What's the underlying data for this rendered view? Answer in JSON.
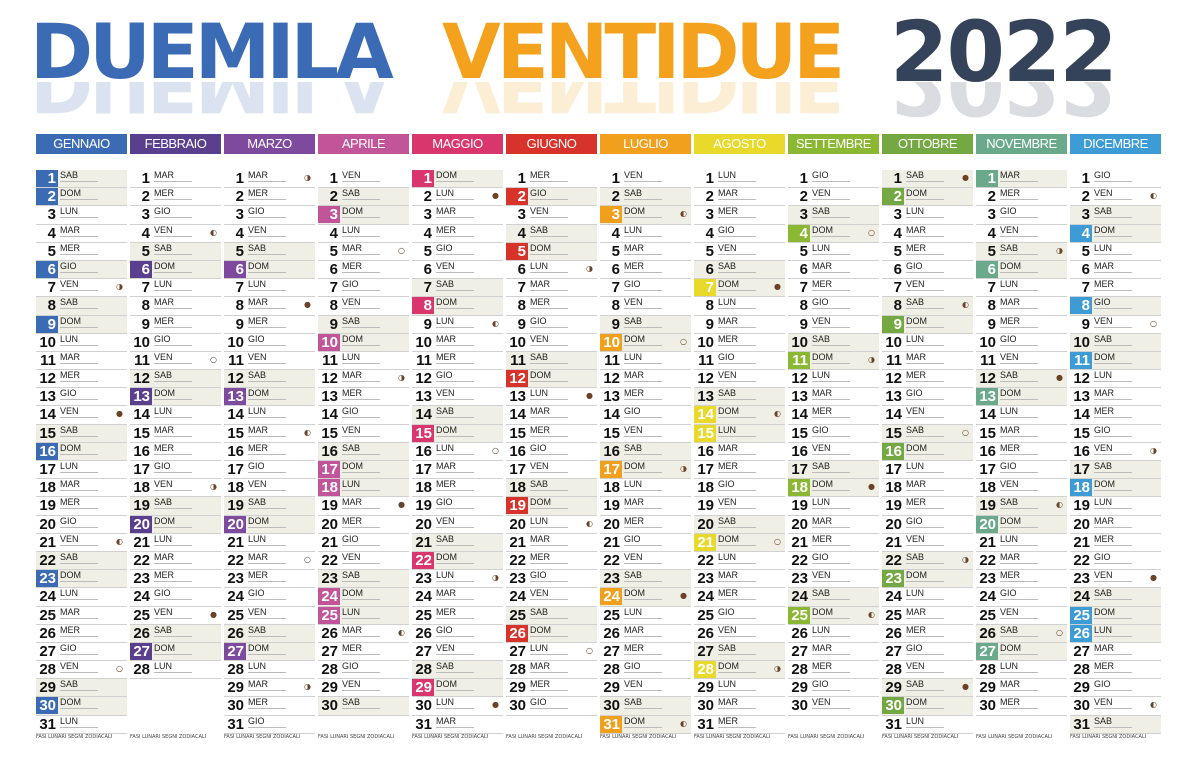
{
  "title": {
    "part1": "DUEMILA",
    "part2": "VENTIDUE",
    "year": "2022"
  },
  "legend": {
    "phases": "FASI LUNARI",
    "signs": "SEGNI ZODIACALI"
  },
  "weekdays": [
    "LUN",
    "MAR",
    "MER",
    "GIO",
    "VEN",
    "SAB",
    "DOM"
  ],
  "months": [
    {
      "name": "GENNAIO",
      "color": "#3b6bb5",
      "days": 31,
      "start": 5,
      "holidays": [
        1,
        2,
        6,
        9,
        16,
        23,
        30
      ]
    },
    {
      "name": "FEBBRAIO",
      "color": "#5a3f8f",
      "days": 28,
      "start": 1,
      "holidays": [
        6,
        13,
        20,
        27
      ]
    },
    {
      "name": "MARZO",
      "color": "#7e4a9e",
      "days": 31,
      "start": 1,
      "holidays": [
        6,
        13,
        20,
        27
      ]
    },
    {
      "name": "APRILE",
      "color": "#c2559a",
      "days": 30,
      "start": 4,
      "holidays": [
        3,
        10,
        17,
        18,
        24,
        25
      ]
    },
    {
      "name": "MAGGIO",
      "color": "#d8366d",
      "days": 31,
      "start": 6,
      "holidays": [
        1,
        8,
        15,
        22,
        29
      ]
    },
    {
      "name": "GIUGNO",
      "color": "#d8332a",
      "days": 30,
      "start": 2,
      "holidays": [
        2,
        5,
        12,
        19,
        26
      ]
    },
    {
      "name": "LUGLIO",
      "color": "#f1a01e",
      "days": 31,
      "start": 4,
      "holidays": [
        3,
        10,
        17,
        24,
        31
      ]
    },
    {
      "name": "AGOSTO",
      "color": "#e8d92a",
      "days": 31,
      "start": 0,
      "holidays": [
        7,
        14,
        15,
        21,
        28
      ]
    },
    {
      "name": "SETTEMBRE",
      "color": "#8ab833",
      "days": 30,
      "start": 3,
      "holidays": [
        4,
        11,
        18,
        25
      ]
    },
    {
      "name": "OTTOBRE",
      "color": "#74a842",
      "days": 31,
      "start": 5,
      "holidays": [
        2,
        9,
        16,
        23,
        30
      ]
    },
    {
      "name": "NOVEMBRE",
      "color": "#6aa98c",
      "days": 30,
      "start": 1,
      "holidays": [
        1,
        6,
        13,
        20,
        27
      ]
    },
    {
      "name": "DICEMBRE",
      "color": "#3d9bd6",
      "days": 31,
      "start": 3,
      "holidays": [
        4,
        8,
        11,
        18,
        25,
        26
      ]
    }
  ]
}
